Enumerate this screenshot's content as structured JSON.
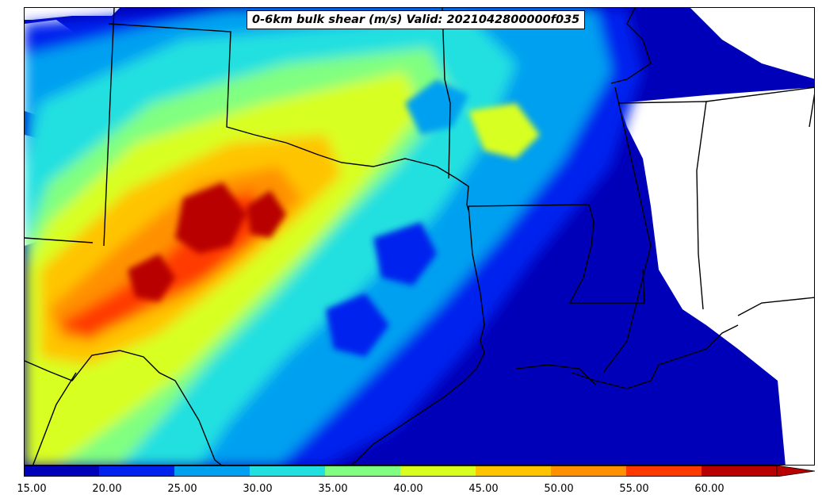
{
  "title": "0-6km bulk shear (m/s) Valid: 2021042800000f035",
  "colorbar": {
    "ticks": [
      "15.00",
      "20.00",
      "25.00",
      "30.00",
      "35.00",
      "40.00",
      "45.00",
      "50.00",
      "55.00",
      "60.00"
    ],
    "colors": [
      "#0000b8",
      "#0022ee",
      "#00a0f0",
      "#22e0e0",
      "#80ff80",
      "#d8ff20",
      "#ffc400",
      "#ff9000",
      "#ff3a00",
      "#b80000"
    ],
    "extend": "max"
  }
}
